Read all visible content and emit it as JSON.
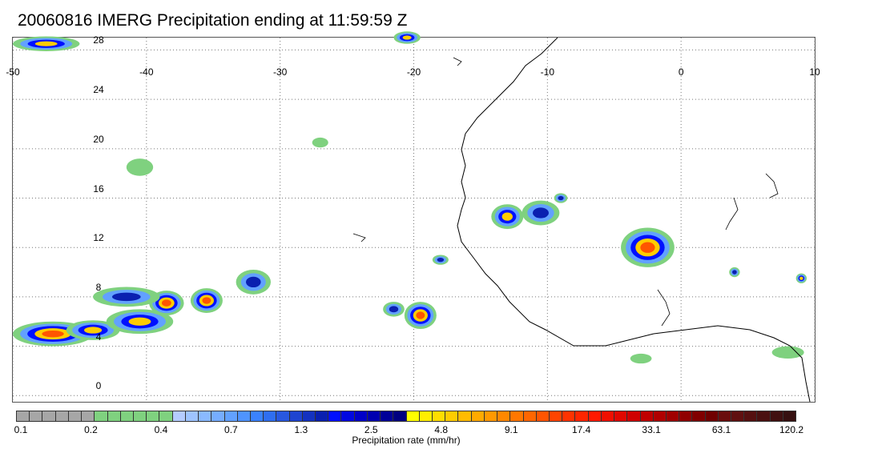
{
  "title": "20060816 IMERG Precipitation ending at 11:59:59 Z",
  "map": {
    "lon_labels": [
      "-50",
      "-40",
      "-30",
      "-20",
      "-10",
      "0",
      "10"
    ],
    "lat_labels": [
      "28",
      "24",
      "20",
      "16",
      "12",
      "8",
      "4",
      "0"
    ],
    "lon_range": [
      -50,
      10
    ],
    "lat_range": [
      -0.5,
      29
    ],
    "grid": "dotted"
  },
  "colorbar": {
    "label": "Precipitation rate (mm/hr)",
    "tick_labels": [
      "0.1",
      "0.2",
      "0.4",
      "0.7",
      "1.3",
      "2.5",
      "4.8",
      "9.1",
      "17.4",
      "33.1",
      "63.1",
      "120.2"
    ],
    "colors": [
      "#a6a6a6",
      "#a6a6a6",
      "#a6a6a6",
      "#a6a6a6",
      "#a6a6a6",
      "#a6a6a6",
      "#7fd17f",
      "#7fd17f",
      "#7fd17f",
      "#7fd17f",
      "#7fd17f",
      "#7fd17f",
      "#b4ccff",
      "#9ec4ff",
      "#8ab9ff",
      "#76adff",
      "#62a1ff",
      "#4f94ff",
      "#3a82ff",
      "#2f6ef0",
      "#2858e0",
      "#1e44d0",
      "#1432c0",
      "#0a20b0",
      "#0010ff",
      "#0008e0",
      "#0000c8",
      "#0000b0",
      "#000098",
      "#000080",
      "#ffff00",
      "#ffee00",
      "#ffdd00",
      "#ffcc00",
      "#ffbb00",
      "#ffaa00",
      "#ff9900",
      "#ff8800",
      "#ff7700",
      "#ff6600",
      "#ff5500",
      "#ff4400",
      "#ff3300",
      "#ff2600",
      "#ff1a00",
      "#f01000",
      "#e00800",
      "#d00000",
      "#c00000",
      "#b00000",
      "#a00000",
      "#900000",
      "#800000",
      "#700000",
      "#6a0d0d",
      "#601010",
      "#551010",
      "#4a1010",
      "#401010",
      "#361010"
    ]
  },
  "precip_features": [
    {
      "lon": -47.5,
      "lat": 28.5,
      "rx": 2.5,
      "ry": 0.6,
      "level": "heavy"
    },
    {
      "lon": -47.0,
      "lat": 5.0,
      "rx": 3.0,
      "ry": 1.0,
      "level": "extreme"
    },
    {
      "lon": -44.0,
      "lat": 5.3,
      "rx": 2.0,
      "ry": 0.8,
      "level": "heavy"
    },
    {
      "lon": -40.5,
      "lat": 6.0,
      "rx": 2.5,
      "ry": 1.0,
      "level": "heavy"
    },
    {
      "lon": -38.5,
      "lat": 7.5,
      "rx": 1.3,
      "ry": 1.0,
      "level": "extreme"
    },
    {
      "lon": -35.5,
      "lat": 7.7,
      "rx": 1.2,
      "ry": 1.0,
      "level": "extreme"
    },
    {
      "lon": -32.0,
      "lat": 9.2,
      "rx": 1.3,
      "ry": 1.0,
      "level": "moderate"
    },
    {
      "lon": -41.5,
      "lat": 8.0,
      "rx": 2.5,
      "ry": 0.8,
      "level": "moderate"
    },
    {
      "lon": -19.5,
      "lat": 6.5,
      "rx": 1.2,
      "ry": 1.1,
      "level": "extreme"
    },
    {
      "lon": -21.5,
      "lat": 7.0,
      "rx": 0.8,
      "ry": 0.6,
      "level": "moderate"
    },
    {
      "lon": -18.0,
      "lat": 11.0,
      "rx": 0.6,
      "ry": 0.4,
      "level": "moderate"
    },
    {
      "lon": -13.0,
      "lat": 14.5,
      "rx": 1.2,
      "ry": 1.0,
      "level": "heavy"
    },
    {
      "lon": -10.5,
      "lat": 14.8,
      "rx": 1.4,
      "ry": 1.0,
      "level": "moderate"
    },
    {
      "lon": -2.5,
      "lat": 12.0,
      "rx": 2.0,
      "ry": 1.6,
      "level": "extreme"
    },
    {
      "lon": -9.0,
      "lat": 16.0,
      "rx": 0.5,
      "ry": 0.4,
      "level": "moderate"
    },
    {
      "lon": 4.0,
      "lat": 10.0,
      "rx": 0.4,
      "ry": 0.4,
      "level": "moderate"
    },
    {
      "lon": 9.0,
      "lat": 9.5,
      "rx": 0.4,
      "ry": 0.4,
      "level": "heavy"
    },
    {
      "lon": -20.5,
      "lat": 29.0,
      "rx": 1.0,
      "ry": 0.5,
      "level": "heavy"
    },
    {
      "lon": -40.5,
      "lat": 18.5,
      "rx": 1.0,
      "ry": 0.7,
      "level": "light"
    },
    {
      "lon": -27.0,
      "lat": 20.5,
      "rx": 0.6,
      "ry": 0.4,
      "level": "light"
    },
    {
      "lon": -3.0,
      "lat": 3.0,
      "rx": 0.8,
      "ry": 0.4,
      "level": "light"
    },
    {
      "lon": 8.0,
      "lat": 3.5,
      "rx": 1.2,
      "ry": 0.5,
      "level": "light"
    }
  ]
}
